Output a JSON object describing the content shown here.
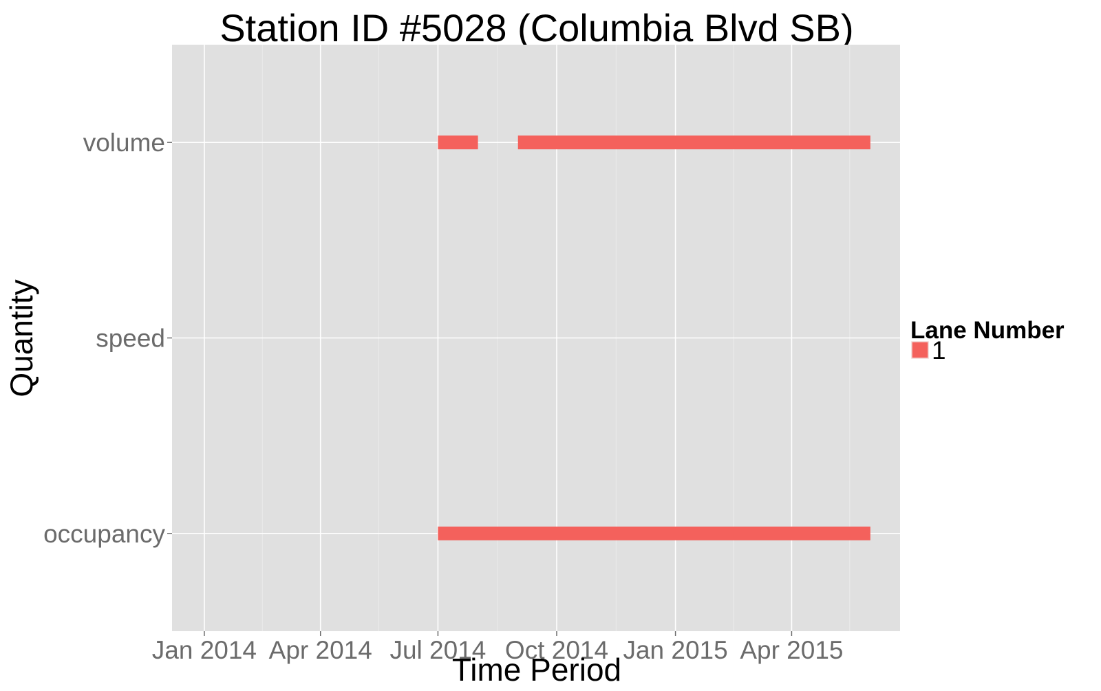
{
  "chart_data": {
    "type": "bar",
    "title": "Station ID #5028 (Columbia Blvd SB)",
    "xlabel": "Time Period",
    "ylabel": "Quantity",
    "x_tick_labels": [
      "Jan 2014",
      "Apr 2014",
      "Jul 2014",
      "Oct 2014",
      "Jan 2015",
      "Apr 2015"
    ],
    "x_ticks": [
      "2014-01-01",
      "2014-04-01",
      "2014-07-01",
      "2014-10-01",
      "2015-01-01",
      "2015-04-01"
    ],
    "xlim": [
      "2013-12-07",
      "2015-06-24"
    ],
    "categories": [
      "volume",
      "speed",
      "occupancy"
    ],
    "legend": {
      "title": "Lane Number",
      "position": "right",
      "entries": [
        "1"
      ]
    },
    "grid": true,
    "colors": {
      "panel": "#e0e0e0",
      "grid_major": "#ffffff",
      "grid_minor": "#ebebeb",
      "series": "#f4615c",
      "tick_label": "#6b6b6b",
      "text": "#000000"
    },
    "series": [
      {
        "name": "1",
        "segments": [
          {
            "quantity": "volume",
            "start": "2014-07-01",
            "end": "2014-08-01"
          },
          {
            "quantity": "volume",
            "start": "2014-09-01",
            "end": "2015-06-01"
          },
          {
            "quantity": "occupancy",
            "start": "2014-07-01",
            "end": "2015-06-01"
          }
        ]
      }
    ]
  }
}
